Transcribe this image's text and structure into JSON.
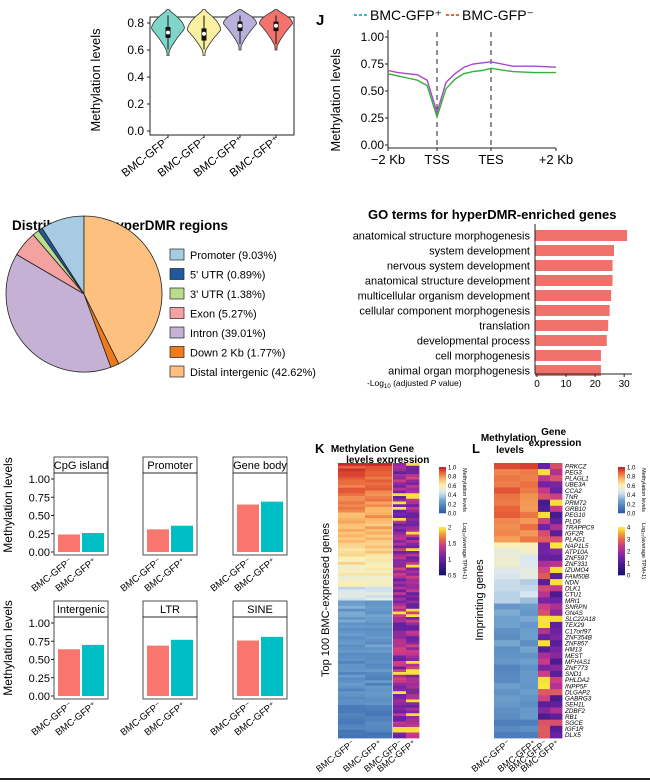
{
  "chart_data": [
    {
      "id": "violin",
      "type": "violin",
      "ylabel": "Methylation levels",
      "ylim": [
        0.0,
        0.8
      ],
      "yticks": [
        "0.0",
        "0.2",
        "0.4",
        "0.6",
        "0.8"
      ],
      "categories": [
        "BMC-GFP⁻",
        "BMC-GFP⁻",
        "BMC-GFP⁺",
        "BMC-GFP⁺"
      ],
      "colors": [
        "#7fd6c8",
        "#faf0a0",
        "#b9b0dc",
        "#f2726d"
      ],
      "medians": [
        0.73,
        0.72,
        0.78,
        0.78
      ],
      "q1": [
        0.69,
        0.67,
        0.74,
        0.74
      ],
      "q3": [
        0.77,
        0.76,
        0.81,
        0.81
      ],
      "mins": [
        0.56,
        0.56,
        0.6,
        0.6
      ],
      "maxs": [
        0.9,
        0.9,
        0.9,
        0.9
      ],
      "grid": false
    },
    {
      "id": "J",
      "type": "line",
      "panel_label": "J",
      "ylabel": "Methylation levels",
      "ylim": [
        0.0,
        1.0
      ],
      "yticks": [
        "0.00",
        "0.25",
        "0.50",
        "0.75",
        "1.00"
      ],
      "xticks": [
        "−2 Kb",
        "TSS",
        "TES",
        "+2 Kb"
      ],
      "legend": "top",
      "series": [
        {
          "name": "BMC-GFP⁺",
          "color": "#a64ac9",
          "values": [
            0.69,
            0.67,
            0.66,
            0.65,
            0.6,
            0.3,
            0.58,
            0.66,
            0.72,
            0.75,
            0.76,
            0.77,
            0.73,
            0.73,
            0.72
          ]
        },
        {
          "name": "BMC-GFP⁻",
          "color": "#33b336",
          "values": [
            0.66,
            0.64,
            0.62,
            0.6,
            0.55,
            0.26,
            0.52,
            0.61,
            0.66,
            0.68,
            0.69,
            0.71,
            0.68,
            0.67,
            0.67
          ]
        }
      ],
      "grid": false
    },
    {
      "id": "pie",
      "type": "pie",
      "title": "Distribution of hyperDMR regions",
      "legend": "right",
      "slices": [
        {
          "label": "Promoter (9.03%)",
          "value": 9.03,
          "color": "#a7cbe3"
        },
        {
          "label": "5' UTR (0.89%)",
          "value": 0.89,
          "color": "#1f5aa0"
        },
        {
          "label": "3' UTR (1.38%)",
          "value": 1.38,
          "color": "#b9dc8e"
        },
        {
          "label": "Exon (5.27%)",
          "value": 5.27,
          "color": "#f4a1a1"
        },
        {
          "label": "Intron (39.01%)",
          "value": 39.01,
          "color": "#c4b1d4"
        },
        {
          "label": "Down 2 Kb (1.77%)",
          "value": 1.77,
          "color": "#ef7a1a"
        },
        {
          "label": "Distal intergenic (42.62%)",
          "value": 42.62,
          "color": "#fdc07f"
        }
      ]
    },
    {
      "id": "go",
      "type": "bar",
      "orientation": "horizontal",
      "title": "GO terms for hyperDMR-enriched genes",
      "xlabel_prefix": "-Log",
      "xlabel_sub": "10",
      "xlabel_mid": " (adjusted ",
      "xlabel_italic": "P",
      "xlabel_suffix": " value)",
      "xlim": [
        0,
        32
      ],
      "xticks": [
        "0",
        "10",
        "20",
        "30"
      ],
      "color": "#f0716b",
      "categories": [
        "anatomical structure morphogenesis",
        "system development",
        "nervous system development",
        "anatomical structure development",
        "multicellular organism development",
        "cellular component morphogenesis",
        "translation",
        "developmental process",
        "cell morphogenesis",
        "animal organ morphogenesis"
      ],
      "values": [
        31,
        26.5,
        26,
        26,
        25.5,
        25,
        24.5,
        24,
        22,
        22
      ]
    },
    {
      "id": "bars",
      "type": "bar",
      "ylabel": "Methylation levels",
      "ylim": [
        0.0,
        1.0
      ],
      "yticks": [
        "0.00",
        "0.25",
        "0.50",
        "0.75",
        "1.00"
      ],
      "categories": [
        "BMC-GFP⁻",
        "BMC-GFP⁺"
      ],
      "colors": [
        "#f8766d",
        "#00bfc4"
      ],
      "facets": [
        {
          "title": "CpG island",
          "values": [
            0.24,
            0.26
          ]
        },
        {
          "title": "Promoter",
          "values": [
            0.31,
            0.36
          ]
        },
        {
          "title": "Gene body",
          "values": [
            0.65,
            0.69
          ]
        },
        {
          "title": "Intergenic",
          "values": [
            0.64,
            0.7
          ]
        },
        {
          "title": "LTR",
          "values": [
            0.69,
            0.77
          ]
        },
        {
          "title": "SINE",
          "values": [
            0.76,
            0.81
          ]
        }
      ]
    },
    {
      "id": "K",
      "type": "heatmap",
      "panel_label": "K",
      "ylabel": "Top 100 BMC-expressed genes",
      "group_meth": "Methylation levels",
      "group_expr": "Gene expression",
      "columns": [
        "BMC-GFP⁻",
        "BMC-GFP⁺",
        "BMC-GFP⁻",
        "BMC-GFP⁺"
      ],
      "meth_legend": {
        "title": "Methylation levels",
        "ticks": [
          "1.0",
          "0.8",
          "0.6",
          "0.4",
          "0.2",
          "0.0"
        ]
      },
      "expr_legend": {
        "title": "Log₁₀(average TPM+1)",
        "ticks": [
          "2",
          "1.5",
          "1",
          "0.5"
        ]
      },
      "rows": 100
    },
    {
      "id": "L",
      "type": "heatmap",
      "panel_label": "L",
      "ylabel": "Imprinting genes",
      "group_meth": "Methylation levels",
      "group_expr": "Gene expression",
      "columns": [
        "BMC-GFP⁻",
        "BMC-GFP⁺",
        "BMC-GFP⁻",
        "BMC-GFP⁺"
      ],
      "meth_legend": {
        "title": "Methylation levels",
        "ticks": [
          "1.0",
          "0.8",
          "0.6",
          "0.4",
          "0.2",
          "0.0"
        ]
      },
      "expr_legend": {
        "title": "Log₁₀(average TPM+1)",
        "ticks": [
          "4",
          "3",
          "2",
          "1",
          "0"
        ]
      },
      "genes": [
        "PRKCZ",
        "PEG3",
        "PLAGL1",
        "UBE3A",
        "CCA2",
        "TNR",
        "PRMT2",
        "GRB10",
        "PEG10",
        "PLD6",
        "TRAPPC9",
        "IGF2R",
        "PLAG1",
        "NAP1L5",
        "ATP10A",
        "ZNF597",
        "ZNF331",
        "IZUMO4",
        "FAM50B",
        "NDN",
        "DLK1",
        "CTU1",
        "MRI1",
        "SNRPN",
        "GNAS",
        "SLC22A18",
        "TEX29",
        "C17orf97",
        "ZNF354B",
        "ZNF857",
        "HM13",
        "MEST",
        "MFHAS1",
        "ZNF773",
        "SND1",
        "PHLDA2",
        "INPP5F",
        "DLGAP2",
        "GABRG3",
        "SEH1L",
        "ZDBF2",
        "RB1",
        "SGCE",
        "IGF1R",
        "DLX5"
      ]
    }
  ]
}
